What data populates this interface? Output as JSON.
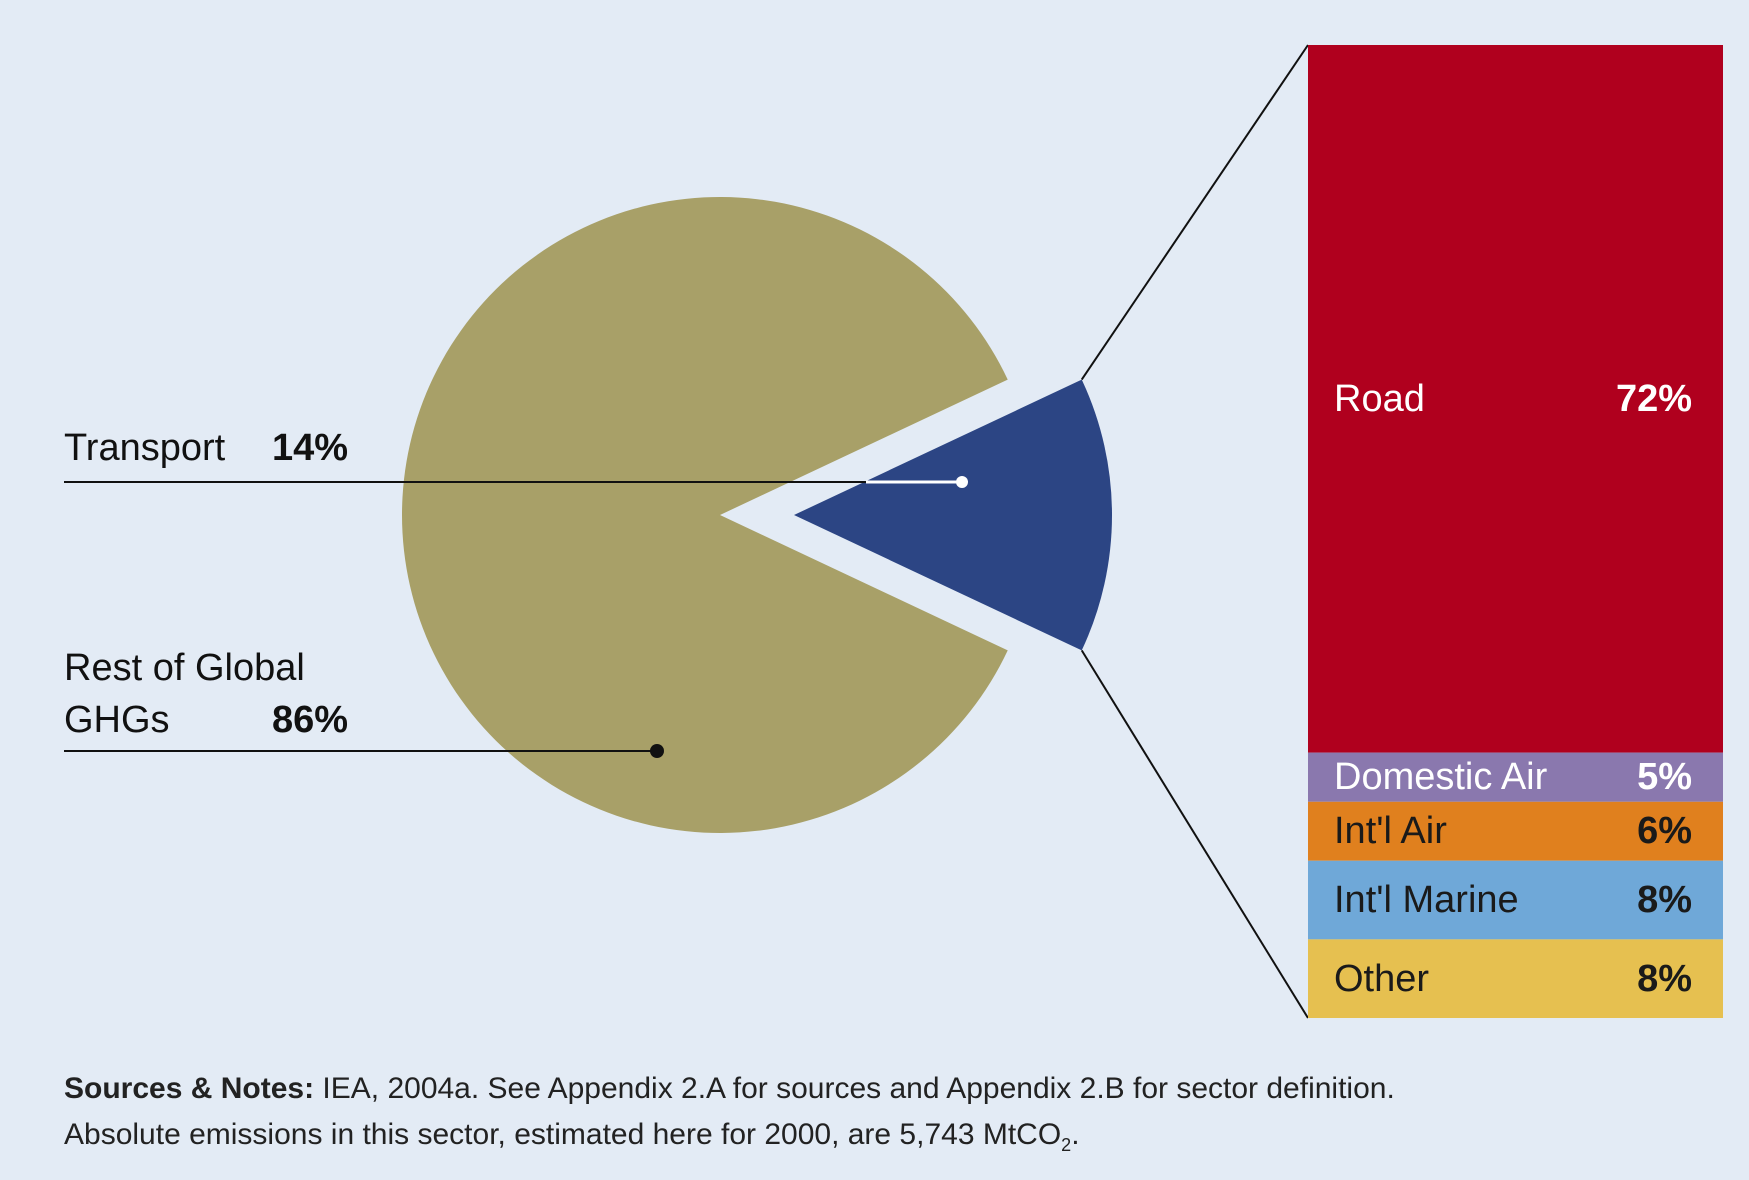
{
  "chart_data": [
    {
      "type": "pie",
      "categories": [
        "Transport",
        "Rest of Global GHGs"
      ],
      "values": [
        14,
        86
      ],
      "value_labels": [
        "14%",
        "86%"
      ],
      "colors": [
        "#2c4584",
        "#a8a068"
      ]
    },
    {
      "type": "bar",
      "stacked": true,
      "categories": [
        "Road",
        "Domestic Air",
        "Int'l Air",
        "Int'l Marine",
        "Other"
      ],
      "values": [
        72,
        5,
        6,
        8,
        8
      ],
      "value_labels": [
        "72%",
        "5%",
        "6%",
        "8%",
        "8%"
      ],
      "colors": [
        "#b0001e",
        "#8a78ae",
        "#e0801e",
        "#6fa8d8",
        "#e6c050"
      ]
    }
  ],
  "notes": {
    "label": "Sources & Notes:",
    "line1": "IEA, 2004a. See Appendix 2.A for sources and Appendix 2.B for sector definition.",
    "line2": "Absolute emissions in this sector, estimated here for 2000, are 5,743 MtCO",
    "line2_subscript": "2",
    "line2_end": "."
  }
}
